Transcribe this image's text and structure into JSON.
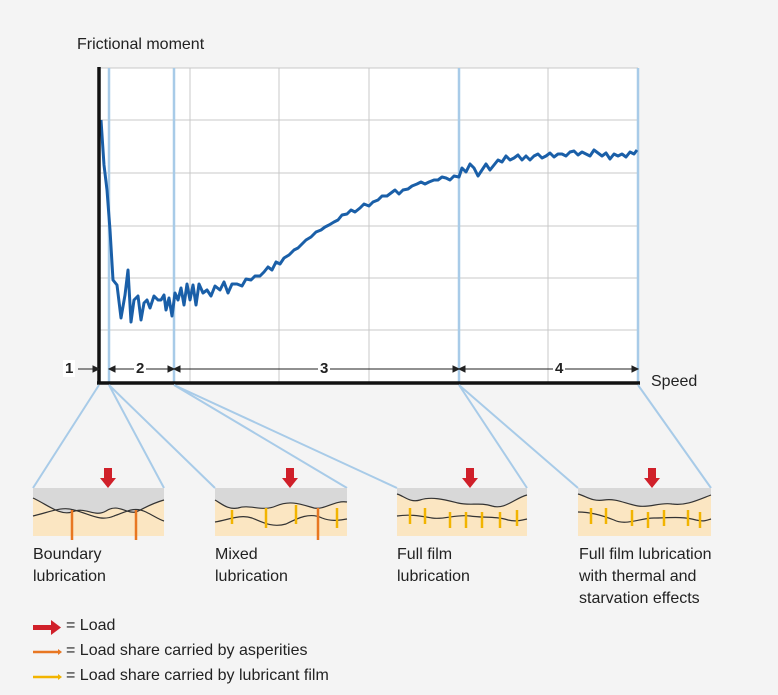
{
  "axes": {
    "y_label": "Frictional moment",
    "x_label": "Speed"
  },
  "zones": [
    {
      "id": "1",
      "label": "1"
    },
    {
      "id": "2",
      "label": "2"
    },
    {
      "id": "3",
      "label": "3"
    },
    {
      "id": "4",
      "label": "4"
    }
  ],
  "regimes": [
    {
      "label": "Boundary\nlubrication"
    },
    {
      "label": "Mixed\nlubrication"
    },
    {
      "label": "Full film\nlubrication"
    },
    {
      "label": "Full film lubrication\nwith thermal and\nstarvation effects"
    }
  ],
  "legend": [
    {
      "label": "= Load",
      "color": "#d0202a",
      "icon": "red-arrow-icon"
    },
    {
      "label": "= Load share carried by asperities",
      "color": "#e87722",
      "icon": "orange-line-icon"
    },
    {
      "label": "= Load share carried by lubricant film",
      "color": "#f2b400",
      "icon": "yellow-line-icon"
    }
  ],
  "colors": {
    "curve": "#1a5fa8",
    "guide": "#a8cbe8",
    "surface": "#fbe6c2",
    "gap": "#d8d8d8"
  }
}
